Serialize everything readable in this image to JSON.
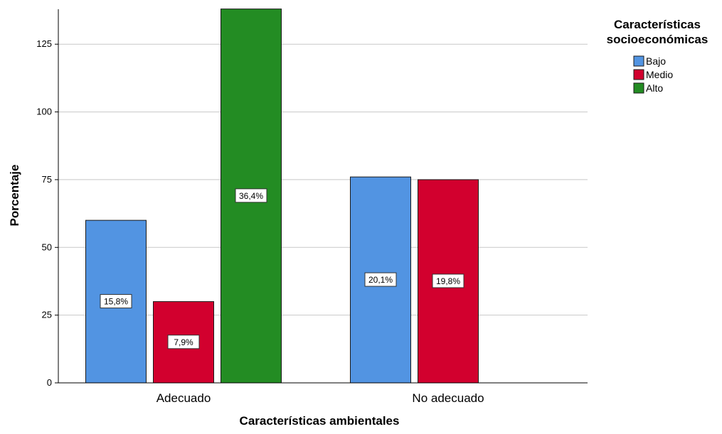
{
  "chart_data": {
    "type": "bar",
    "title": "",
    "xlabel": "Características ambientales",
    "ylabel": "Porcentaje",
    "ylim": [
      0,
      140
    ],
    "yticks": [
      0,
      25,
      50,
      75,
      100,
      125
    ],
    "grid": true,
    "legend": {
      "title_lines": [
        "Características",
        "socioeconómicas"
      ],
      "placement": "top-right"
    },
    "categories": [
      "Adecuado",
      "No adecuado"
    ],
    "series": [
      {
        "name": "Bajo",
        "color": "#5294e2",
        "values": [
          60,
          76
        ],
        "labels": [
          "15,8%",
          "20,1%"
        ]
      },
      {
        "name": "Medio",
        "color": "#d2002e",
        "values": [
          30,
          75
        ],
        "labels": [
          "7,9%",
          "19,8%"
        ]
      },
      {
        "name": "Alto",
        "color": "#238c23",
        "values": [
          138,
          null
        ],
        "labels": [
          "36,4%",
          null
        ]
      }
    ]
  }
}
